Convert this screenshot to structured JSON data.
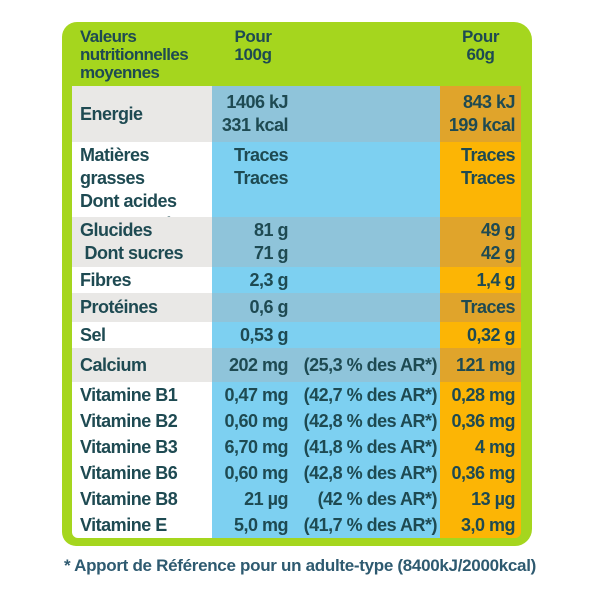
{
  "header": {
    "title": "Valeurs\nnutritionnelles\nmoyennes",
    "col_100g": "Pour\n100g",
    "col_60g": "Pour\n60g"
  },
  "rows": [
    {
      "label": "Energie",
      "v100": "1406 kJ\n331 kcal",
      "ar": "",
      "v60": "843 kJ\n199 kcal"
    },
    {
      "label": "Matières grasses\nDont acides\ngras saturés",
      "v100": "Traces\nTraces",
      "ar": "",
      "v60": "Traces\nTraces"
    },
    {
      "label": "Glucides\n Dont sucres",
      "v100": "81 g\n71 g",
      "ar": "",
      "v60": "49 g\n42 g"
    },
    {
      "label": "Fibres",
      "v100": "2,3 g",
      "ar": "",
      "v60": "1,4 g"
    },
    {
      "label": "Protéines",
      "v100": "0,6 g",
      "ar": "",
      "v60": "Traces"
    },
    {
      "label": "Sel",
      "v100": "0,53 g",
      "ar": "",
      "v60": "0,32 g"
    },
    {
      "label": "Calcium",
      "v100": "202 mg",
      "ar": "(25,3 % des AR*)",
      "v60": "121 mg"
    },
    {
      "label": "Vitamine B1",
      "v100": "0,47 mg",
      "ar": "(42,7 % des AR*)",
      "v60": "0,28 mg"
    },
    {
      "label": "Vitamine B2",
      "v100": "0,60 mg",
      "ar": "(42,8 % des AR*)",
      "v60": "0,36 mg"
    },
    {
      "label": "Vitamine B3",
      "v100": "6,70 mg",
      "ar": "(41,8 % des AR*)",
      "v60": "4 mg"
    },
    {
      "label": "Vitamine B6",
      "v100": "0,60 mg",
      "ar": "(42,8 % des AR*)",
      "v60": "0,36 mg"
    },
    {
      "label": "Vitamine B8",
      "v100": "21 µg",
      "ar": "(42 % des AR*)",
      "v60": "13 µg"
    },
    {
      "label": "Vitamine E",
      "v100": "5,0 mg",
      "ar": "(41,7 % des AR*)",
      "v60": "3,0 mg"
    }
  ],
  "footnote": "* Apport de Référence pour un adulte-type (8400kJ/2000kcal)",
  "colors": {
    "green": "#a5d61e",
    "text": "#1e4a52",
    "label_gray": "#e9e8e6",
    "label_white": "#ffffff",
    "blue_muted": "#8fc4da",
    "blue_bright": "#7dd0f1",
    "orange_muted": "#e0a42b",
    "orange_bright": "#fcb505",
    "footnote": "#2e5a70"
  }
}
